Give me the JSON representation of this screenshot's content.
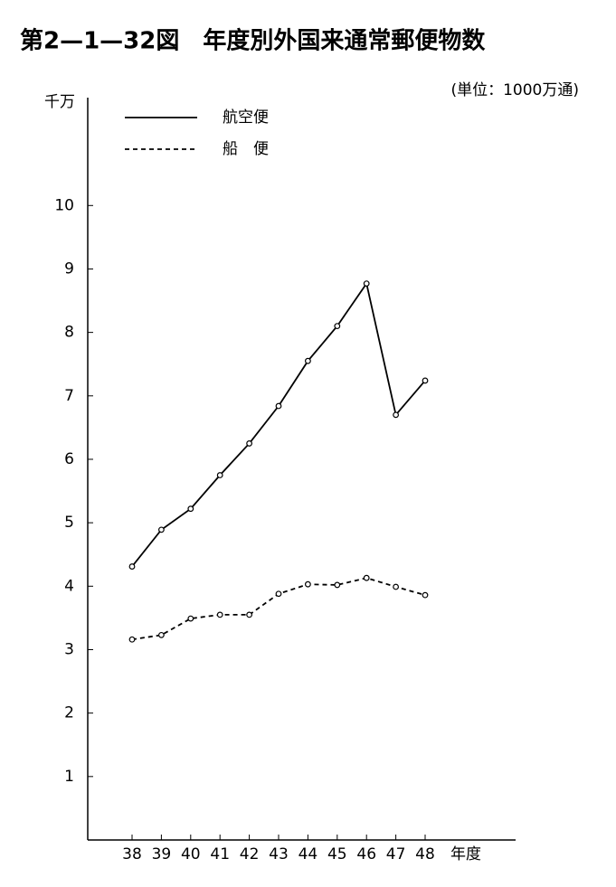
{
  "chart_data": {
    "type": "line",
    "title": "第2—1—32図　年度別外国来通常郵便物数",
    "subtitle": "(単位：1000万通)",
    "y_label": "千万",
    "x_label": "年度",
    "categories": [
      "38",
      "39",
      "40",
      "41",
      "42",
      "43",
      "44",
      "45",
      "46",
      "47",
      "48"
    ],
    "series": [
      {
        "name": "航空便",
        "color": "#000000",
        "dash": "solid",
        "values": [
          4.31,
          4.89,
          5.22,
          5.75,
          6.25,
          6.84,
          7.55,
          8.1,
          8.77,
          6.7,
          7.24
        ]
      },
      {
        "name": "船　便",
        "color": "#000000",
        "dash": "dashed",
        "values": [
          3.16,
          3.23,
          3.49,
          3.55,
          3.55,
          3.88,
          4.03,
          4.02,
          4.13,
          3.99,
          3.86
        ]
      }
    ],
    "ylim": [
      0,
      11.7
    ],
    "yticks": [
      1,
      2,
      3,
      4,
      5,
      6,
      7,
      8,
      9,
      10
    ],
    "grid": false
  }
}
